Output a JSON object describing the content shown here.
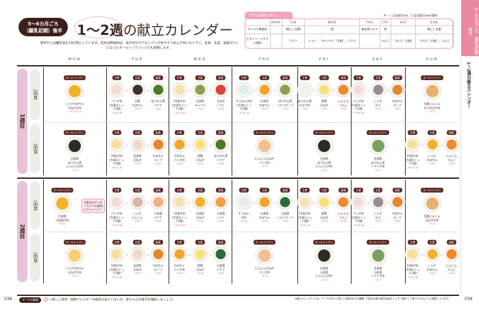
{
  "header": {
    "badge_line1": "5〜6カ月ごろ",
    "badge_line2": "（離乳初期）後半",
    "title_bold": "1〜2週",
    "title_rest": "の献立カレンダー",
    "intro": "後半からは離乳食を1日2回にしています。炭水化物食材は、米がゆだけでなくパンがゆやそうめんがゆにもトライ。主食、主菜、副菜が1つになったオールインワンレシピも登場します。"
  },
  "plus_list": {
    "title": "プラス食材リスト",
    "note": "※（ ）は1週目のみ、[ ]は2週目のみの食材",
    "days": [
      "MON",
      "TUE",
      "WED",
      "THU",
      "FRI",
      "SAT",
      "SUN"
    ],
    "rows": [
      {
        "label": "タンパク質食材",
        "cells": [
          "",
          "（絹ごし豆腐）",
          "卵",
          "育児用ミルク",
          "卵",
          "",
          "絹ごし豆腐"
        ]
      },
      {
        "label": "ビタミン・ミネラル食材",
        "cells": [
          "",
          "バナナ",
          "トマト、（キャベツ）（大根）、バナナ",
          "",
          "りんご",
          "（かぶ）（大根）",
          "（かぶ）（大根）、りんご"
        ]
      }
    ]
  },
  "side": {
    "tab": "5〜6カ月ごろ（離乳初期）後半",
    "title": "1〜2週の献立カレンダー"
  },
  "days": [
    "MON",
    "TUE",
    "WED",
    "THU",
    "FRI",
    "SAT",
    "SUN"
  ],
  "labels": {
    "allinone": "オールインワン",
    "main": "主食",
    "protein": "主菜",
    "side": "副菜"
  },
  "weeks": [
    {
      "label": "1週目",
      "meals": [
        {
          "label": "1回目",
          "cells": [
            {
              "type": "one",
              "items": [
                {
                  "name": "しらすかぼちゃ\n玉ねぎがゆ",
                  "ref": "→P.72/P.74",
                  "color": "#f2b12a"
                }
              ]
            },
            {
              "type": "three",
              "items": [
                {
                  "name": "パンがゆ\n(冷凍ストック1個)",
                  "ref": "→P.58,38",
                  "color": "#f3dcd6"
                },
                {
                  "name": "豆腐\nかぼちゃ",
                  "ref": "→P.61",
                  "color": "#3a3030"
                },
                {
                  "name": "ほうれん草\nバナナ",
                  "ref": "→P.62",
                  "color": "#4d7a2a"
                }
              ]
            },
            {
              "type": "three",
              "items": [
                {
                  "name": "10倍がゆ\n(冷凍ストック1個)",
                  "ref": "→P.53,38",
                  "color": "#f4e3b0"
                },
                {
                  "name": "白身魚\nキャベツ",
                  "ref": "→P.61",
                  "color": "#8aa050"
                },
                {
                  "name": "玉ねぎ\nトマト",
                  "ref": "→P.62",
                  "color": "#d9433a"
                }
              ]
            },
            {
              "type": "three",
              "items": [
                {
                  "name": "そうめんがゆ\n(冷凍ストック1個)",
                  "ref": "→P.56,38",
                  "color": "#dfeeea"
                },
                {
                  "name": "白身魚\nかぼちゃ",
                  "ref": "→P.61",
                  "color": "#f2a52a"
                },
                {
                  "name": "ほうれん草\nミルクスープ",
                  "ref": "→P.62",
                  "color": "#8aa050"
                }
              ]
            },
            {
              "type": "three",
              "items": [
                {
                  "name": "ほうれん草\nのせがゆ",
                  "ref": "→P.62",
                  "color": "#eef0ea"
                },
                {
                  "name": "卵黄\n玉ねぎ",
                  "ref": "→P.62",
                  "color": "#f6e27a"
                },
                {
                  "name": "にんじん\nりんご",
                  "ref": "→P.62",
                  "color": "#f08a2a"
                }
              ]
            },
            {
              "type": "three",
              "items": [
                {
                  "name": "パンがゆ\n(冷凍ストック1個)",
                  "ref": "→P.58,38",
                  "color": "#f3dcd6"
                },
                {
                  "name": "しらす\nかぶ",
                  "ref": "→P.61",
                  "color": "#9a8a9a"
                },
                {
                  "name": "かぼちゃ\nスープ",
                  "ref": "→P.62",
                  "color": "#e8862a"
                }
              ]
            },
            {
              "type": "one",
              "items": [
                {
                  "name": "豆腐にんじん\nかぶのせがゆ",
                  "ref": "→P.72",
                  "color": "#e8b070"
                }
              ]
            }
          ]
        },
        {
          "label": "2回目",
          "cells": [
            {
              "type": "one",
              "items": [
                {
                  "name": "白身魚\nほうれん草\nにんじんがゆ",
                  "ref": "→P.72",
                  "color": "#2e2a28"
                }
              ]
            },
            {
              "type": "three",
              "items": [
                {
                  "name": "10倍がゆ\n(冷凍ストック1個)",
                  "ref": "→P.53,38",
                  "color": "#f6e0a0"
                },
                {
                  "name": "白身魚\n玉ねぎ",
                  "ref": "→P.61",
                  "color": "#eedcc8"
                },
                {
                  "name": "かぼちゃ\nスープ",
                  "ref": "→P.62",
                  "color": "#e8862a"
                }
              ]
            },
            {
              "type": "three",
              "items": [
                {
                  "name": "かぼちゃ\nパンがゆ",
                  "ref": "→P.58",
                  "color": "#f2a52a"
                },
                {
                  "name": "卵黄\n玉ねぎ",
                  "ref": "→P.62",
                  "color": "#f6e27a"
                },
                {
                  "name": "ほうれん草\nバナナ",
                  "ref": "→P.62",
                  "color": "#4d7a2a"
                }
              ]
            },
            {
              "type": "one",
              "items": [
                {
                  "name": "にんじん玉ねぎ\nパンがゆ",
                  "ref": "→P.72",
                  "color": "#f0c090"
                }
              ]
            },
            {
              "type": "one",
              "items": [
                {
                  "name": "白身魚\nほうれん草\nにんじんがゆ",
                  "ref": "→P.72",
                  "color": "#2e2a28"
                }
              ]
            },
            {
              "type": "one",
              "items": [
                {
                  "name": "白身魚\nほうれん草\nトマトがゆ",
                  "ref": "→P.72",
                  "color": "#7aa060"
                }
              ]
            },
            {
              "type": "three",
              "items": [
                {
                  "name": "10倍がゆ\n(冷凍ストック1個)",
                  "ref": "→P.53,38",
                  "color": "#f6e0a0"
                },
                {
                  "name": "しらす\nかぼちゃ",
                  "ref": "→P.61",
                  "color": "#f2b12a"
                },
                {
                  "name": "にんじん\nりんご",
                  "ref": "→P.62",
                  "color": "#f08a2a"
                }
              ]
            }
          ]
        }
      ]
    },
    {
      "label": "2週目",
      "meals": [
        {
          "label": "1回目",
          "cells": [
            {
              "type": "one",
              "items": [
                {
                  "name": "白身魚\n小松菜がゆ",
                  "ref": "→P.72",
                  "color": "#f2b12a"
                }
              ]
            },
            {
              "type": "three",
              "items": [
                {
                  "name": "パンがゆ\n(冷凍ストック1個)",
                  "ref": "→P.58,38",
                  "color": "#f3dcd6"
                },
                {
                  "name": "しらす\nにんじん",
                  "ref": "→P.61",
                  "color": "#d8b8a8"
                },
                {
                  "name": "小松菜\nバナナ",
                  "ref": "→P.62",
                  "color": "#f2b080"
                }
              ]
            },
            {
              "type": "three",
              "items": [
                {
                  "name": "10倍がゆ\n(冷凍ストック1個)",
                  "ref": "→P.53,38",
                  "color": "#f4e3b0"
                },
                {
                  "name": "白身魚\n玉ねぎ",
                  "ref": "→P.61",
                  "color": "#f2b12a"
                },
                {
                  "name": "小松菜\nトマト",
                  "ref": "→P.62",
                  "color": "#f0a040"
                }
              ]
            },
            {
              "type": "three",
              "items": [
                {
                  "name": "そうめん\nがゆ",
                  "ref": "→P.56",
                  "color": "#dfeeea"
                },
                {
                  "name": "白身魚\nかぼちゃ",
                  "ref": "→P.61",
                  "color": "#f2a52a"
                },
                {
                  "name": "小松菜\nミルクスープ",
                  "ref": "→P.62",
                  "color": "#2a6a3a"
                }
              ]
            },
            {
              "type": "three",
              "items": [
                {
                  "name": "10倍がゆ\n(冷凍ストック1個)",
                  "ref": "→P.53,38",
                  "color": "#f4e3b0"
                },
                {
                  "name": "卵黄\n玉ねぎ",
                  "ref": "→P.62",
                  "color": "#f6e27a"
                },
                {
                  "name": "にんじん\nりんご",
                  "ref": "→P.62",
                  "color": "#f08a2a"
                }
              ]
            },
            {
              "type": "three",
              "items": [
                {
                  "name": "パンがゆ\n(冷凍ストック1個)",
                  "ref": "→P.58,38",
                  "color": "#f3dcd6"
                },
                {
                  "name": "しらす\nかぶ",
                  "ref": "→P.61",
                  "color": "#9a8a9a"
                },
                {
                  "name": "かぼちゃ\nスープ",
                  "ref": "→P.62",
                  "color": "#e8862a"
                }
              ]
            },
            {
              "type": "one",
              "items": [
                {
                  "name": "豆腐にんじん\n玉ねぎがゆ",
                  "ref": "→P.72",
                  "color": "#e8b070"
                }
              ]
            }
          ]
        },
        {
          "label": "2回目",
          "cells": [
            {
              "type": "one",
              "items": [
                {
                  "name": "しらすかぼちゃ\n玉ねぎがゆ",
                  "ref": "→P.72",
                  "color": "#f6d070"
                }
              ]
            },
            {
              "type": "three",
              "items": [
                {
                  "name": "10倍がゆ\n(冷凍ストック1個)",
                  "ref": "→P.53,38",
                  "color": "#f6e0a0"
                },
                {
                  "name": "白身魚\n玉ねぎ",
                  "ref": "→P.61",
                  "color": "#eedcc8"
                },
                {
                  "name": "かぼちゃ\nスープ",
                  "ref": "→P.62",
                  "color": "#e8862a"
                }
              ]
            },
            {
              "type": "three",
              "items": [
                {
                  "name": "かぼちゃ\nパンがゆ",
                  "ref": "→P.58",
                  "color": "#f2a52a"
                },
                {
                  "name": "卵黄\n玉ねぎ",
                  "ref": "→P.62",
                  "color": "#f6e27a"
                },
                {
                  "name": "小松菜\nバナナ",
                  "ref": "→P.62",
                  "color": "#2a6a3a"
                }
              ]
            },
            {
              "type": "one",
              "items": [
                {
                  "name": "にんじん玉ねぎ\nパンがゆ",
                  "ref": "→P.72",
                  "color": "#f0c090"
                }
              ]
            },
            {
              "type": "one",
              "items": [
                {
                  "name": "白身魚\n小松菜\nにんじんがゆ",
                  "ref": "→P.72",
                  "color": "#2e2a28"
                }
              ]
            },
            {
              "type": "one",
              "items": [
                {
                  "name": "白身魚\n小松菜\nトマトがゆ",
                  "ref": "→P.72",
                  "color": "#7aa060"
                }
              ]
            },
            {
              "type": "three",
              "items": [
                {
                  "name": "10倍がゆ\n(冷凍ストック1個)",
                  "ref": "→P.53,38",
                  "color": "#f6e0a0"
                },
                {
                  "name": "しらす\nかぼちゃ",
                  "ref": "→P.61",
                  "color": "#f2b12a"
                },
                {
                  "name": "にんじん\nりんご",
                  "ref": "→P.62",
                  "color": "#f08a2a"
                }
              ]
            }
          ]
        }
      ]
    }
  ],
  "callout": "2週目はアンダーラインの食材にチャレンジ！",
  "footer": {
    "page_left": "038",
    "page_right": "039",
    "legend_label": "マークの解説",
    "legend_text": "＝新しい食材（食物アレルギーの症状が出ていないか、赤ちゃんの様子を確認しましょう）",
    "note": "※献立カレンダーでは、マークの付いた新しい食材は1日1種類。2回目以降の食材は量を少しずつ増やして食べられるように配慮しています。"
  },
  "colors": {
    "accent": "#e98aa2",
    "dark": "#3b1f1a",
    "week_pill": "#e8c3d7",
    "new_mark": "#e06a8e"
  }
}
